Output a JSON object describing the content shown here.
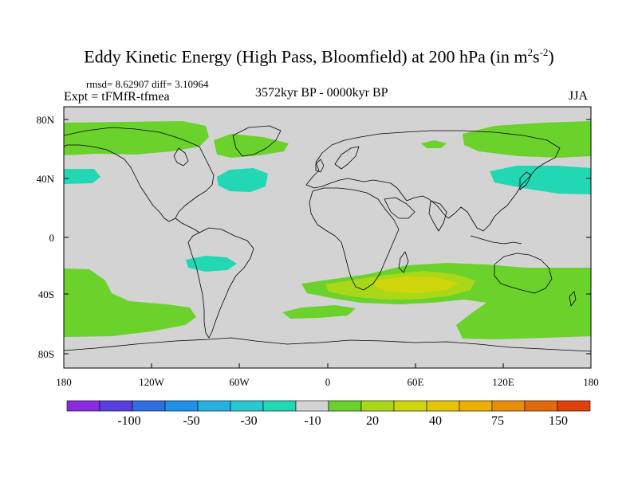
{
  "title": "Eddy Kinetic Energy (High Pass, Bloomfield) at 200 hPa (in m",
  "title_sup1": "2",
  "title_mid": "s",
  "title_sup2": "-2",
  "title_end": ")",
  "stats": "rmsd= 8.62907 diff= 3.10964",
  "expt": "Expt = tFMfR-tfmea",
  "period": "3572kyr BP - 0000kyr BP",
  "season": "JJA",
  "lat_labels": [
    "80N",
    "40N",
    "0",
    "40S",
    "80S"
  ],
  "lon_labels": [
    "180",
    "120W",
    "60W",
    "0",
    "60E",
    "120E",
    "180"
  ],
  "colorbar": {
    "labels": [
      "-100",
      "-50",
      "-30",
      "-10",
      "20",
      "40",
      "75",
      "150"
    ],
    "colors": [
      "#8a2be2",
      "#5a3fe0",
      "#2f6fe0",
      "#1f90e8",
      "#25b0e0",
      "#2ac8d2",
      "#22d7b4",
      "#d3d3d3",
      "#6bd22c",
      "#a8d818",
      "#cfd60c",
      "#e4c308",
      "#ebb003",
      "#e88f0a",
      "#e36a0c",
      "#e0400c"
    ]
  },
  "map": {
    "background": "#d3d3d3",
    "land_outline": "#000000",
    "positive_low": "#6bd22c",
    "positive_mid": "#a8d818",
    "positive_high": "#cfd60c",
    "negative_low": "#22d7b4"
  }
}
